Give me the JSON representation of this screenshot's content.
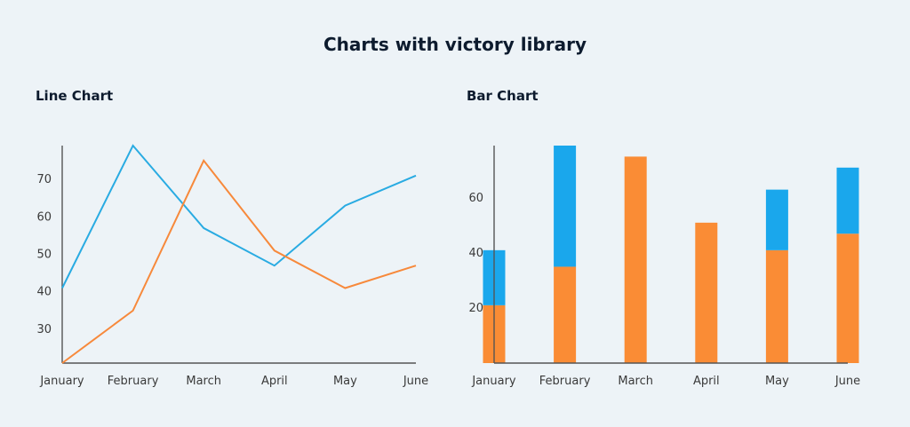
{
  "page": {
    "title": "Charts with victory library"
  },
  "colors": {
    "series_a": "#29ABE2",
    "series_b": "#F7893B",
    "bar_a": "#1AA7EC",
    "bar_b": "#FA8C35"
  },
  "chart_data": [
    {
      "type": "line",
      "title": "Line Chart",
      "categories": [
        "January",
        "February",
        "March",
        "April",
        "May",
        "June"
      ],
      "series": [
        {
          "values": [
            41,
            79,
            57,
            47,
            63,
            71
          ],
          "color": "#29ABE2"
        },
        {
          "values": [
            21,
            35,
            75,
            51,
            41,
            47
          ],
          "color": "#F7893B"
        }
      ],
      "yticks": [
        30,
        40,
        50,
        60,
        70
      ],
      "ylim": [
        21,
        79
      ],
      "grid": false
    },
    {
      "type": "bar",
      "stacked": true,
      "title": "Bar Chart",
      "categories": [
        "January",
        "February",
        "March",
        "April",
        "May",
        "June"
      ],
      "series": [
        {
          "values": [
            21,
            35,
            75,
            51,
            41,
            47
          ],
          "color": "#FA8C35"
        },
        {
          "values": [
            20,
            44,
            0,
            0,
            22,
            24
          ],
          "color": "#1AA7EC"
        }
      ],
      "yticks": [
        20,
        40,
        60
      ],
      "ylim": [
        0,
        79
      ],
      "grid": false
    }
  ]
}
